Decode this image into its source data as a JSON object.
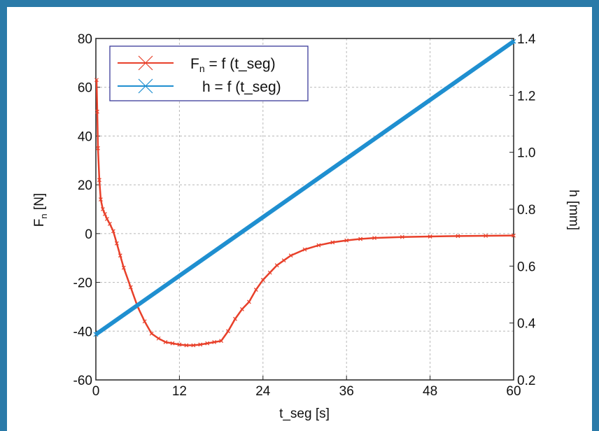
{
  "chart_data": {
    "type": "line",
    "xlabel": "t_seg  [s]",
    "ylabel_left": "F",
    "ylabel_left_sub": "n",
    "ylabel_left_unit": "[N]",
    "ylabel_right": "h  [mm]",
    "xlim": [
      0,
      60
    ],
    "ylim_left": [
      -60,
      80
    ],
    "ylim_right": [
      0.2,
      1.4
    ],
    "x_ticks": [
      0,
      12,
      24,
      36,
      48,
      60
    ],
    "y_left_ticks": [
      -60,
      -40,
      -20,
      0,
      20,
      40,
      60,
      80
    ],
    "y_right_ticks": [
      0.2,
      0.4,
      0.6,
      0.8,
      1.0,
      1.2,
      1.4
    ],
    "x_tick_labels": [
      "0",
      "12",
      "24",
      "36",
      "48",
      "60"
    ],
    "y_left_tick_labels": [
      "-60",
      "-40",
      "-20",
      "0",
      "20",
      "40",
      "60",
      "80"
    ],
    "y_right_tick_labels": [
      "0.2",
      "0.4",
      "0.6",
      "0.8",
      "1.0",
      "1.2",
      "1.4"
    ],
    "grid": true,
    "legend_position": "top-left",
    "series": [
      {
        "name": "Fn = f (t_seg)",
        "legend_main": "F",
        "legend_sub": "n",
        "legend_rest": " = f (t_seg)",
        "axis": "left",
        "color": "#e8402a",
        "marker": "x",
        "x": [
          0.1,
          0.2,
          0.3,
          0.5,
          0.7,
          1,
          1.3,
          1.6,
          2,
          2.5,
          3,
          3.5,
          4,
          5,
          6,
          7,
          8,
          9,
          10,
          11,
          12,
          13,
          14,
          15,
          16,
          17,
          18,
          19,
          20,
          21,
          22,
          23,
          24,
          25,
          26,
          27,
          28,
          30,
          32,
          34,
          36,
          38,
          40,
          44,
          48,
          52,
          56,
          60
        ],
        "y": [
          63,
          50,
          35,
          22,
          14,
          10,
          8,
          6,
          4,
          1,
          -4,
          -9,
          -14,
          -22,
          -30,
          -36,
          -41,
          -43,
          -44.5,
          -45,
          -45.5,
          -45.8,
          -45.8,
          -45.5,
          -45,
          -44.5,
          -44,
          -40,
          -35,
          -31,
          -28,
          -23,
          -19,
          -16,
          -13,
          -11,
          -9,
          -6.5,
          -4.8,
          -3.6,
          -2.8,
          -2.2,
          -1.8,
          -1.4,
          -1.2,
          -1,
          -0.9,
          -0.8
        ]
      },
      {
        "name": "h = f (t_seg)",
        "legend_main": "h",
        "legend_sub": "",
        "legend_rest": " = f (t_seg)",
        "axis": "right",
        "color": "#1f8fd0",
        "marker": "x",
        "x": [
          0,
          60
        ],
        "y": [
          0.36,
          1.39
        ]
      }
    ]
  }
}
